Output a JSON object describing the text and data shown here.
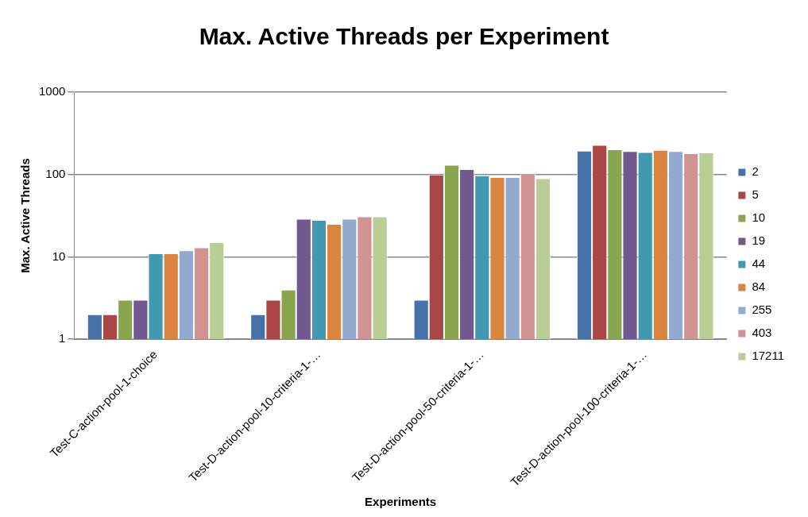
{
  "chart_data": {
    "type": "bar",
    "title": "Max. Active Threads per Experiment",
    "xlabel": "Experiments",
    "ylabel": "Max. Active Threads",
    "categories": [
      "Test-C-action-pool-1-choice",
      "Test-D-action-pool-10-criteria-1-…",
      "Test-D-action-pool-50-criteria-1-…",
      "Test-D-action-pool-100-criteria-1-…"
    ],
    "series": [
      {
        "name": "2",
        "color": "#4572a7",
        "values": [
          2,
          2,
          3,
          194
        ]
      },
      {
        "name": "5",
        "color": "#aa4643",
        "values": [
          2,
          3,
          100,
          229
        ]
      },
      {
        "name": "10",
        "color": "#89a54e",
        "values": [
          3,
          4,
          131,
          202
        ]
      },
      {
        "name": "19",
        "color": "#71588f",
        "values": [
          3,
          29,
          116,
          192
        ]
      },
      {
        "name": "44",
        "color": "#4198af",
        "values": [
          11,
          28,
          97,
          187
        ]
      },
      {
        "name": "84",
        "color": "#db843d",
        "values": [
          11,
          25,
          93,
          199
        ]
      },
      {
        "name": "255",
        "color": "#93a9cf",
        "values": [
          12,
          29,
          93,
          192
        ]
      },
      {
        "name": "403",
        "color": "#d19392",
        "values": [
          13,
          31,
          103,
          181
        ]
      },
      {
        "name": "17211",
        "color": "#b9cd96",
        "values": [
          15,
          31,
          90,
          185
        ]
      }
    ],
    "log": "y",
    "ylim": [
      1,
      1000
    ],
    "yticks": [
      1,
      10,
      100,
      1000
    ],
    "grid": "y",
    "legend": "right"
  }
}
